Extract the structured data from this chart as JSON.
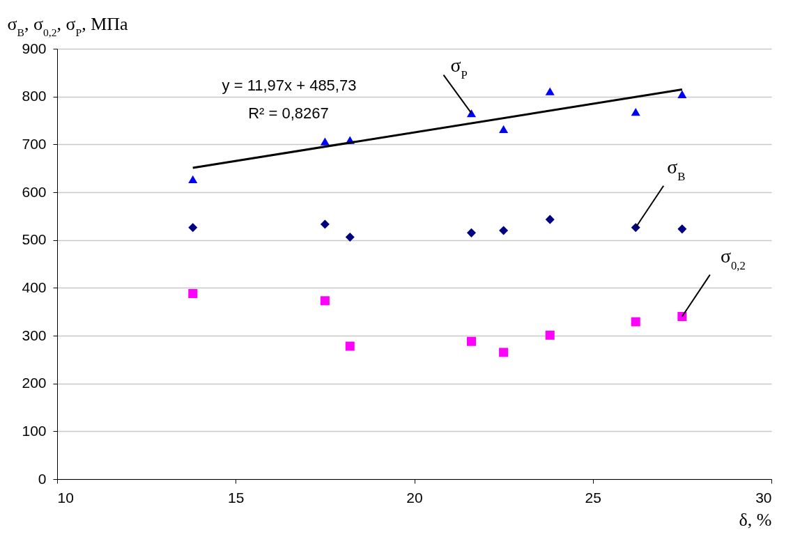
{
  "chart_data": {
    "type": "scatter",
    "ylabel": "σ$_{В}$, σ$_{0,2}$, σ$_{Р}$, МПа",
    "xlabel": "δ, %",
    "xlim": [
      10,
      30
    ],
    "xticks": [
      10,
      15,
      20,
      25,
      30
    ],
    "ylim": [
      0,
      900
    ],
    "yticks": [
      0,
      100,
      200,
      300,
      400,
      500,
      600,
      700,
      800,
      900
    ],
    "grid": "y",
    "annotations": [
      "y = 11,97x + 485,73",
      "R² = 0,8267"
    ],
    "series": [
      {
        "name": "σ$_{Р}$",
        "color": "#0000ff",
        "marker": "triangle",
        "x": [
          13.8,
          17.5,
          18.2,
          21.6,
          22.5,
          23.8,
          26.2,
          27.5
        ],
        "values": [
          627,
          706,
          709,
          765,
          732,
          811,
          768,
          805
        ]
      },
      {
        "name": "σ$_{В}$",
        "color": "#000080",
        "marker": "diamond",
        "x": [
          13.8,
          17.5,
          18.2,
          21.6,
          22.5,
          23.8,
          26.2,
          27.5
        ],
        "values": [
          526,
          533,
          506,
          515,
          520,
          543,
          526,
          523
        ]
      },
      {
        "name": "σ$_{0,2}$",
        "color": "#ff00ff",
        "marker": "square",
        "x": [
          13.8,
          17.5,
          18.2,
          21.6,
          22.5,
          23.8,
          26.2,
          27.5
        ],
        "values": [
          388,
          373,
          278,
          288,
          265,
          301,
          329,
          340
        ]
      },
      {
        "type": "line",
        "color": "#000000",
        "marker": "none",
        "line_style": "solid",
        "x": [
          13.8,
          27.5
        ],
        "values": [
          650.9,
          814.9
        ]
      }
    ]
  }
}
